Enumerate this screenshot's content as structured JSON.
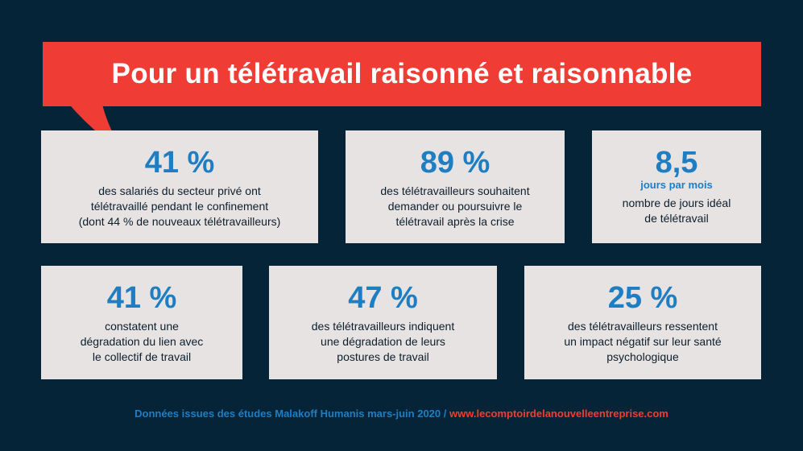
{
  "title": "Pour un télétravail raisonné et raisonnable",
  "colors": {
    "background": "#062437",
    "accent_red": "#ef3d35",
    "accent_blue": "#1f7ec2",
    "card": "#e8e3e3"
  },
  "stats": [
    {
      "value": "41 %",
      "description": "des salariés du secteur privé ont\ntélétravaillé pendant le confinement\n(dont 44 % de nouveaux télétravailleurs)"
    },
    {
      "value": "89 %",
      "description": "des télétravailleurs souhaitent\ndemander ou poursuivre le\ntélétravail après la crise"
    },
    {
      "value": "8,5",
      "unit": "jours par mois",
      "description": "nombre de jours idéal\nde télétravail"
    },
    {
      "value": "41 %",
      "description": "constatent une\ndégradation du lien avec\nle collectif de travail"
    },
    {
      "value": "47 %",
      "description": "des télétravailleurs  indiquent\nune dégradation de leurs\npostures de travail"
    },
    {
      "value": "25 %",
      "description": "des télétravailleurs ressentent\nun impact négatif sur leur santé\npsychologique"
    }
  ],
  "footer": {
    "source": "Données issues des études Malakoff Humanis mars-juin 2020",
    "separator": " / ",
    "url": "www.lecomptoirdelanouvelleentreprise.com"
  }
}
